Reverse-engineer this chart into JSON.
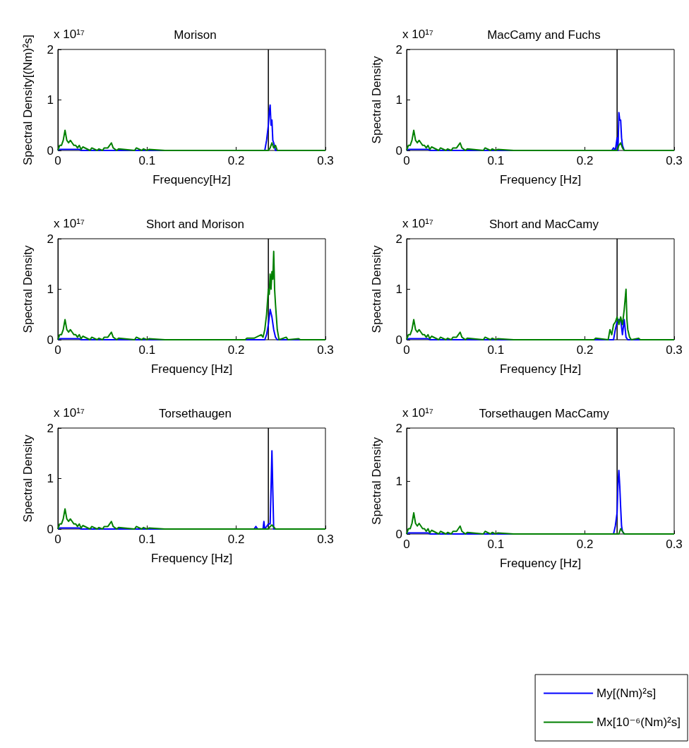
{
  "chart_data": [
    {
      "type": "line",
      "title": "Morison",
      "xlabel": "Frequency[Hz]",
      "ylabel": "Spectral Density[(Nm)²s]",
      "annotations": [
        "x 10¹⁷"
      ],
      "xlim": [
        0,
        0.3
      ],
      "xticks": [
        0,
        0.1,
        0.2,
        0.3
      ],
      "ylim": [
        0,
        2
      ],
      "yticks": [
        0,
        1,
        2
      ],
      "grid": false,
      "ref_lines": [
        {
          "axis": "x",
          "value": 0.236,
          "color": "#000000"
        }
      ],
      "series": [
        {
          "color": "#0000ff",
          "x": [
            0,
            0.002,
            0.024,
            0.026,
            0.232,
            0.234,
            0.236,
            0.237,
            0.238,
            0.239,
            0.24,
            0.241,
            0.242,
            0.244,
            0.3
          ],
          "values": [
            0,
            0.02,
            0.02,
            0,
            0,
            0.2,
            0.5,
            0.75,
            0.9,
            0.5,
            0.6,
            0.2,
            0.15,
            0,
            0
          ]
        },
        {
          "color": "#008000",
          "x": [
            0,
            0.002,
            0.004,
            0.006,
            0.008,
            0.01,
            0.012,
            0.014,
            0.016,
            0.018,
            0.02,
            0.022,
            0.024,
            0.026,
            0.028,
            0.036,
            0.038,
            0.044,
            0.046,
            0.05,
            0.052,
            0.056,
            0.058,
            0.06,
            0.062,
            0.066,
            0.068,
            0.086,
            0.088,
            0.094,
            0.096,
            0.1,
            0.102,
            0.12,
            0.122,
            0.236,
            0.238,
            0.24,
            0.242,
            0.244,
            0.246,
            0.3
          ],
          "values": [
            0,
            0.1,
            0.1,
            0.2,
            0.4,
            0.2,
            0.15,
            0.2,
            0.15,
            0.1,
            0.1,
            0.05,
            0.1,
            0.02,
            0.07,
            0,
            0.05,
            0,
            0.03,
            0,
            0.05,
            0.05,
            0.1,
            0.15,
            0.05,
            0,
            0.03,
            0,
            0.05,
            0,
            0.03,
            0,
            0.02,
            0,
            0,
            0,
            0.05,
            0.15,
            0.05,
            0.1,
            0,
            0
          ]
        }
      ]
    },
    {
      "type": "line",
      "title": "MacCamy and Fuchs",
      "xlabel": "Frequency [Hz]",
      "ylabel": "Spectral Density",
      "annotations": [
        "x 10¹⁷"
      ],
      "xlim": [
        0,
        0.3
      ],
      "xticks": [
        0,
        0.1,
        0.2,
        0.3
      ],
      "ylim": [
        0,
        2
      ],
      "yticks": [
        0,
        1,
        2
      ],
      "grid": false,
      "ref_lines": [
        {
          "axis": "x",
          "value": 0.236,
          "color": "#000000"
        }
      ],
      "series": [
        {
          "color": "#0000ff",
          "x": [
            0,
            0.002,
            0.024,
            0.026,
            0.23,
            0.232,
            0.234,
            0.236,
            0.237,
            0.238,
            0.239,
            0.24,
            0.241,
            0.242,
            0.244,
            0.3
          ],
          "values": [
            0,
            0.02,
            0.02,
            0,
            0,
            0.05,
            0,
            0.25,
            0,
            0.75,
            0.6,
            0.6,
            0.25,
            0.1,
            0,
            0
          ]
        },
        {
          "color": "#008000",
          "x": [
            0,
            0.002,
            0.004,
            0.006,
            0.008,
            0.01,
            0.012,
            0.014,
            0.016,
            0.018,
            0.02,
            0.022,
            0.024,
            0.026,
            0.028,
            0.036,
            0.038,
            0.044,
            0.046,
            0.05,
            0.052,
            0.056,
            0.058,
            0.06,
            0.062,
            0.066,
            0.068,
            0.086,
            0.088,
            0.094,
            0.096,
            0.1,
            0.102,
            0.12,
            0.122,
            0.236,
            0.238,
            0.24,
            0.242,
            0.244,
            0.3
          ],
          "values": [
            0,
            0.1,
            0.1,
            0.2,
            0.4,
            0.2,
            0.15,
            0.2,
            0.15,
            0.1,
            0.1,
            0.05,
            0.1,
            0.02,
            0.07,
            0,
            0.05,
            0,
            0.03,
            0,
            0.05,
            0.05,
            0.1,
            0.15,
            0.05,
            0,
            0.03,
            0,
            0.05,
            0,
            0.03,
            0,
            0.02,
            0,
            0,
            0,
            0.1,
            0.15,
            0.05,
            0,
            0
          ]
        }
      ]
    },
    {
      "type": "line",
      "title": "Short and Morison",
      "xlabel": "Frequency [Hz]",
      "ylabel": "Spectral Density",
      "annotations": [
        "x 10¹⁷"
      ],
      "xlim": [
        0,
        0.3
      ],
      "xticks": [
        0,
        0.1,
        0.2,
        0.3
      ],
      "ylim": [
        0,
        2
      ],
      "yticks": [
        0,
        1,
        2
      ],
      "grid": false,
      "ref_lines": [
        {
          "axis": "x",
          "value": 0.236,
          "color": "#000000"
        }
      ],
      "series": [
        {
          "color": "#0000ff",
          "x": [
            0,
            0.002,
            0.024,
            0.026,
            0.232,
            0.234,
            0.236,
            0.238,
            0.24,
            0.242,
            0.244,
            0.246,
            0.3
          ],
          "values": [
            0,
            0.02,
            0.02,
            0,
            0,
            0.1,
            0.3,
            0.6,
            0.45,
            0.2,
            0.05,
            0,
            0
          ]
        },
        {
          "color": "#008000",
          "x": [
            0,
            0.002,
            0.004,
            0.006,
            0.008,
            0.01,
            0.012,
            0.014,
            0.016,
            0.018,
            0.02,
            0.022,
            0.024,
            0.026,
            0.028,
            0.036,
            0.038,
            0.044,
            0.046,
            0.05,
            0.052,
            0.056,
            0.058,
            0.06,
            0.062,
            0.066,
            0.068,
            0.086,
            0.088,
            0.094,
            0.096,
            0.1,
            0.102,
            0.12,
            0.122,
            0.21,
            0.212,
            0.22,
            0.228,
            0.23,
            0.232,
            0.234,
            0.236,
            0.237,
            0.238,
            0.239,
            0.24,
            0.241,
            0.242,
            0.243,
            0.244,
            0.246,
            0.248,
            0.256,
            0.258,
            0.27,
            0.272,
            0.3
          ],
          "values": [
            0,
            0.1,
            0.1,
            0.2,
            0.4,
            0.2,
            0.15,
            0.2,
            0.15,
            0.1,
            0.1,
            0.05,
            0.1,
            0.02,
            0.07,
            0,
            0.05,
            0,
            0.03,
            0,
            0.05,
            0.05,
            0.1,
            0.15,
            0.05,
            0,
            0.03,
            0,
            0.05,
            0,
            0.03,
            0,
            0.02,
            0,
            0,
            0,
            0.03,
            0.03,
            0.1,
            0.05,
            0.2,
            0.5,
            1,
            0.9,
            1.3,
            1,
            1.35,
            1.2,
            1.75,
            1,
            0.7,
            0.2,
            0,
            0.05,
            0,
            0.02,
            0,
            0
          ]
        }
      ]
    },
    {
      "type": "line",
      "title": "Short and MacCamy",
      "xlabel": "Frequency [Hz]",
      "ylabel": "Spectral Density",
      "annotations": [
        "x 10¹⁷"
      ],
      "xlim": [
        0,
        0.3
      ],
      "xticks": [
        0,
        0.1,
        0.2,
        0.3
      ],
      "ylim": [
        0,
        2
      ],
      "yticks": [
        0,
        1,
        2
      ],
      "grid": false,
      "ref_lines": [
        {
          "axis": "x",
          "value": 0.236,
          "color": "#000000"
        }
      ],
      "series": [
        {
          "color": "#0000ff",
          "x": [
            0,
            0.002,
            0.024,
            0.026,
            0.232,
            0.234,
            0.236,
            0.238,
            0.24,
            0.242,
            0.244,
            0.246,
            0.248,
            0.3
          ],
          "values": [
            0,
            0.02,
            0.02,
            0,
            0,
            0.2,
            0.35,
            0.4,
            0.4,
            0.1,
            0.4,
            0.05,
            0,
            0
          ]
        },
        {
          "color": "#008000",
          "x": [
            0,
            0.002,
            0.004,
            0.006,
            0.008,
            0.01,
            0.012,
            0.014,
            0.016,
            0.018,
            0.02,
            0.022,
            0.024,
            0.026,
            0.028,
            0.036,
            0.038,
            0.044,
            0.046,
            0.05,
            0.052,
            0.056,
            0.058,
            0.06,
            0.062,
            0.066,
            0.068,
            0.086,
            0.088,
            0.094,
            0.096,
            0.1,
            0.102,
            0.12,
            0.122,
            0.21,
            0.212,
            0.226,
            0.228,
            0.23,
            0.232,
            0.234,
            0.236,
            0.238,
            0.24,
            0.242,
            0.244,
            0.246,
            0.247,
            0.248,
            0.25,
            0.252,
            0.26,
            0.262,
            0.3
          ],
          "values": [
            0,
            0.1,
            0.1,
            0.2,
            0.4,
            0.2,
            0.15,
            0.2,
            0.15,
            0.1,
            0.1,
            0.05,
            0.1,
            0.02,
            0.07,
            0,
            0.05,
            0,
            0.03,
            0,
            0.05,
            0.05,
            0.1,
            0.15,
            0.05,
            0,
            0.03,
            0,
            0.05,
            0,
            0.03,
            0,
            0.02,
            0,
            0,
            0,
            0.03,
            0,
            0.2,
            0.1,
            0.3,
            0.35,
            0.45,
            0.3,
            0.45,
            0.3,
            0.6,
            1,
            0.4,
            0.2,
            0.05,
            0,
            0.03,
            0,
            0
          ]
        }
      ]
    },
    {
      "type": "line",
      "title": "Torsethaugen",
      "xlabel": "Frequency [Hz]",
      "ylabel": "Spectral Density",
      "annotations": [
        "x 10¹⁷"
      ],
      "xlim": [
        0,
        0.3
      ],
      "xticks": [
        0,
        0.1,
        0.2,
        0.3
      ],
      "ylim": [
        0,
        2
      ],
      "yticks": [
        0,
        1,
        2
      ],
      "grid": false,
      "ref_lines": [
        {
          "axis": "x",
          "value": 0.236,
          "color": "#000000"
        }
      ],
      "series": [
        {
          "color": "#0000ff",
          "x": [
            0,
            0.002,
            0.024,
            0.026,
            0.22,
            0.222,
            0.224,
            0.23,
            0.231,
            0.232,
            0.236,
            0.238,
            0.239,
            0.24,
            0.241,
            0.242,
            0.3
          ],
          "values": [
            0,
            0.02,
            0.02,
            0,
            0,
            0.05,
            0,
            0,
            0.15,
            0,
            0.1,
            0.1,
            0.8,
            1.55,
            0.75,
            0,
            0
          ]
        },
        {
          "color": "#008000",
          "x": [
            0,
            0.002,
            0.004,
            0.006,
            0.008,
            0.01,
            0.012,
            0.014,
            0.016,
            0.018,
            0.02,
            0.022,
            0.024,
            0.026,
            0.028,
            0.036,
            0.038,
            0.044,
            0.046,
            0.05,
            0.052,
            0.056,
            0.058,
            0.06,
            0.062,
            0.066,
            0.068,
            0.086,
            0.088,
            0.094,
            0.096,
            0.1,
            0.102,
            0.12,
            0.122,
            0.236,
            0.238,
            0.24,
            0.244,
            0.3
          ],
          "values": [
            0,
            0.1,
            0.1,
            0.2,
            0.4,
            0.2,
            0.15,
            0.2,
            0.15,
            0.1,
            0.1,
            0.05,
            0.1,
            0.02,
            0.07,
            0,
            0.05,
            0,
            0.03,
            0,
            0.05,
            0.05,
            0.1,
            0.15,
            0.05,
            0,
            0.03,
            0,
            0.05,
            0,
            0.03,
            0,
            0.02,
            0,
            0,
            0,
            0.05,
            0.08,
            0,
            0
          ]
        }
      ]
    },
    {
      "type": "line",
      "title": "Torsethaugen MacCamy",
      "xlabel": "Frequency [Hz]",
      "ylabel": "Spectral Density",
      "annotations": [
        "x 10¹⁷"
      ],
      "xlim": [
        0,
        0.3
      ],
      "xticks": [
        0,
        0.1,
        0.2,
        0.3
      ],
      "ylim": [
        0,
        2
      ],
      "yticks": [
        0,
        1,
        2
      ],
      "grid": false,
      "legend": "bottom right",
      "ref_lines": [
        {
          "axis": "x",
          "value": 0.236,
          "color": "#000000"
        }
      ],
      "series": [
        {
          "name": "My[(Nm)²s]",
          "color": "#0000ff",
          "x": [
            0,
            0.002,
            0.024,
            0.026,
            0.232,
            0.234,
            0.236,
            0.237,
            0.238,
            0.239,
            0.24,
            0.241,
            0.242,
            0.244,
            0.3
          ],
          "values": [
            0,
            0.02,
            0.02,
            0,
            0,
            0.15,
            0.4,
            0.95,
            1.2,
            0.9,
            0.5,
            0.15,
            0.05,
            0,
            0
          ]
        },
        {
          "name": "Mx[10⁻⁶(Nm)²s]",
          "color": "#008000",
          "x": [
            0,
            0.002,
            0.004,
            0.006,
            0.008,
            0.01,
            0.012,
            0.014,
            0.016,
            0.018,
            0.02,
            0.022,
            0.024,
            0.026,
            0.028,
            0.036,
            0.038,
            0.044,
            0.046,
            0.05,
            0.052,
            0.056,
            0.058,
            0.06,
            0.062,
            0.066,
            0.068,
            0.086,
            0.088,
            0.094,
            0.096,
            0.1,
            0.102,
            0.12,
            0.122,
            0.238,
            0.24,
            0.242,
            0.244,
            0.3
          ],
          "values": [
            0,
            0.1,
            0.1,
            0.2,
            0.4,
            0.2,
            0.15,
            0.2,
            0.15,
            0.1,
            0.1,
            0.05,
            0.1,
            0.02,
            0.07,
            0,
            0.05,
            0,
            0.03,
            0,
            0.05,
            0.05,
            0.1,
            0.15,
            0.05,
            0,
            0.03,
            0,
            0.05,
            0,
            0.03,
            0,
            0.02,
            0,
            0,
            0,
            0.1,
            0.05,
            0,
            0
          ]
        }
      ]
    }
  ]
}
